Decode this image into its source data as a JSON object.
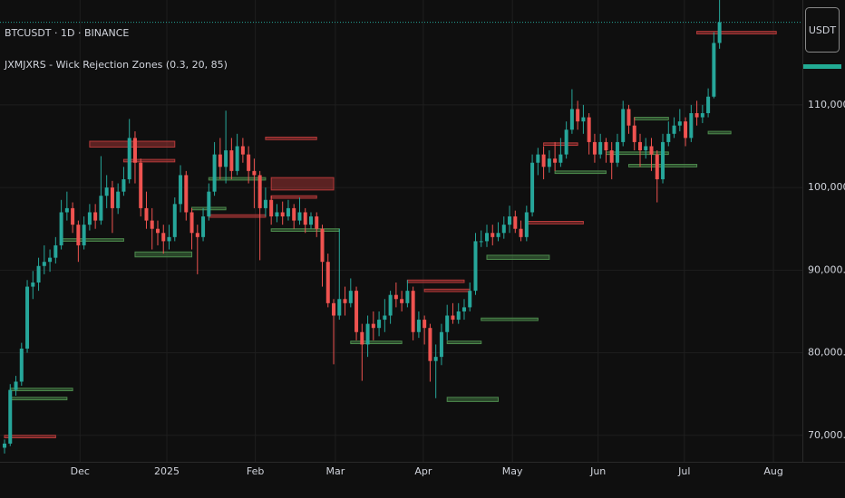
{
  "chart_data": {
    "type": "candlestick",
    "title": "BTCUSDT · 1D · BINANCE",
    "subtitle": "JXMJXRS - Wick Rejection Zones (0.3, 20, 85)",
    "currency_button": "USDT",
    "up_color": "#26a69a",
    "down_color": "#ef5350",
    "grid": true,
    "xlim": [
      -0.8,
      140.6
    ],
    "ylim": [
      66800,
      122700
    ],
    "xticks": [
      {
        "value": 13.3,
        "label": "Dec"
      },
      {
        "value": 28.6,
        "label": "2025"
      },
      {
        "value": 44.2,
        "label": "Feb"
      },
      {
        "value": 58.3,
        "label": "Mar"
      },
      {
        "value": 73.8,
        "label": "Apr"
      },
      {
        "value": 89.5,
        "label": "May"
      },
      {
        "value": 104.6,
        "label": "Jun"
      },
      {
        "value": 119.8,
        "label": "Jul"
      },
      {
        "value": 135.5,
        "label": "Aug"
      }
    ],
    "yticks": [
      {
        "value": 70000,
        "label": "70,000.00"
      },
      {
        "value": 80000,
        "label": "80,000.00"
      },
      {
        "value": 90000,
        "label": "90,000.00"
      },
      {
        "value": 100000,
        "label": "100,000.00"
      },
      {
        "value": 110000,
        "label": "110,000.00"
      }
    ],
    "candles": [
      [
        68500,
        69500,
        67800,
        69000
      ],
      [
        69000,
        76200,
        68700,
        75500
      ],
      [
        75500,
        77200,
        74800,
        76500
      ],
      [
        76500,
        81200,
        76000,
        80500
      ],
      [
        80500,
        88800,
        80000,
        88000
      ],
      [
        88000,
        89900,
        86500,
        88500
      ],
      [
        88500,
        91500,
        87500,
        90500
      ],
      [
        90500,
        93000,
        89500,
        91000
      ],
      [
        91000,
        92500,
        89800,
        91500
      ],
      [
        91500,
        94000,
        90800,
        93000
      ],
      [
        93000,
        98500,
        92500,
        97000
      ],
      [
        97000,
        99500,
        96000,
        97500
      ],
      [
        97500,
        98200,
        94500,
        95500
      ],
      [
        95500,
        96000,
        91000,
        93000
      ],
      [
        93000,
        96500,
        92500,
        95500
      ],
      [
        95500,
        98000,
        94800,
        97000
      ],
      [
        97000,
        98000,
        95000,
        96000
      ],
      [
        96000,
        103800,
        95500,
        99000
      ],
      [
        99000,
        101500,
        97500,
        100000
      ],
      [
        100000,
        100800,
        94500,
        97500
      ],
      [
        97500,
        100500,
        96800,
        99500
      ],
      [
        99500,
        102500,
        99000,
        101000
      ],
      [
        101000,
        108300,
        100500,
        106000
      ],
      [
        106000,
        106800,
        100500,
        103000
      ],
      [
        103000,
        103500,
        96500,
        97500
      ],
      [
        97500,
        99500,
        95000,
        96000
      ],
      [
        96000,
        97500,
        92500,
        95000
      ],
      [
        95000,
        96000,
        93000,
        94500
      ],
      [
        94500,
        95500,
        92000,
        93500
      ],
      [
        93500,
        95500,
        92500,
        94000
      ],
      [
        94000,
        98800,
        93500,
        98000
      ],
      [
        98000,
        102700,
        97000,
        101500
      ],
      [
        101500,
        102000,
        96000,
        97000
      ],
      [
        97000,
        97500,
        92500,
        94500
      ],
      [
        94500,
        95500,
        89500,
        94000
      ],
      [
        94000,
        97500,
        93500,
        96500
      ],
      [
        96500,
        100500,
        96000,
        99500
      ],
      [
        99500,
        105500,
        99000,
        104000
      ],
      [
        104000,
        106000,
        101000,
        102500
      ],
      [
        102500,
        109300,
        100500,
        104500
      ],
      [
        104500,
        106000,
        101000,
        102000
      ],
      [
        102000,
        106500,
        101500,
        105000
      ],
      [
        105000,
        106000,
        103000,
        104000
      ],
      [
        104000,
        105000,
        100500,
        102000
      ],
      [
        102000,
        103500,
        97500,
        101500
      ],
      [
        101500,
        102000,
        91200,
        97500
      ],
      [
        97500,
        100000,
        96500,
        98500
      ],
      [
        98500,
        99000,
        95500,
        96500
      ],
      [
        96500,
        98000,
        95800,
        97000
      ],
      [
        97000,
        98300,
        95500,
        96500
      ],
      [
        96500,
        98500,
        96000,
        97500
      ],
      [
        97500,
        98000,
        95000,
        96000
      ],
      [
        96000,
        98800,
        95500,
        97000
      ],
      [
        97000,
        97500,
        94500,
        95500
      ],
      [
        95500,
        97000,
        95000,
        96500
      ],
      [
        96500,
        97000,
        94000,
        95000
      ],
      [
        95000,
        95500,
        88000,
        91000
      ],
      [
        91000,
        92000,
        85500,
        86000
      ],
      [
        86000,
        86500,
        78600,
        84500
      ],
      [
        84500,
        95000,
        84000,
        86500
      ],
      [
        86500,
        88000,
        84500,
        86000
      ],
      [
        86000,
        89000,
        85500,
        87500
      ],
      [
        87500,
        88000,
        81500,
        82500
      ],
      [
        82500,
        83500,
        76600,
        81000
      ],
      [
        81000,
        84500,
        79500,
        83500
      ],
      [
        83500,
        85000,
        81500,
        83000
      ],
      [
        83000,
        85000,
        82000,
        84000
      ],
      [
        84000,
        86500,
        82500,
        84500
      ],
      [
        84500,
        87500,
        83500,
        87000
      ],
      [
        87000,
        88500,
        85500,
        86500
      ],
      [
        86500,
        87500,
        85000,
        86000
      ],
      [
        86000,
        88800,
        85500,
        87500
      ],
      [
        87500,
        88000,
        81500,
        82500
      ],
      [
        82500,
        85000,
        81800,
        84000
      ],
      [
        84000,
        84500,
        81000,
        83000
      ],
      [
        83000,
        83500,
        76500,
        79000
      ],
      [
        79000,
        81000,
        74500,
        79500
      ],
      [
        79500,
        83500,
        78500,
        82500
      ],
      [
        82500,
        85800,
        81500,
        84500
      ],
      [
        84500,
        86000,
        83500,
        84000
      ],
      [
        84000,
        86000,
        83500,
        85000
      ],
      [
        85000,
        86500,
        84000,
        85500
      ],
      [
        85500,
        88500,
        85000,
        87500
      ],
      [
        87500,
        94500,
        87000,
        93500
      ],
      [
        93500,
        94800,
        92800,
        93500
      ],
      [
        93500,
        95500,
        92800,
        94500
      ],
      [
        94500,
        95500,
        93000,
        94000
      ],
      [
        94000,
        95800,
        93500,
        94500
      ],
      [
        94500,
        96500,
        93800,
        95500
      ],
      [
        95500,
        97800,
        94500,
        96500
      ],
      [
        96500,
        97200,
        94500,
        95000
      ],
      [
        95000,
        96000,
        93500,
        94000
      ],
      [
        94000,
        97800,
        93500,
        97000
      ],
      [
        97000,
        104000,
        96500,
        103000
      ],
      [
        103000,
        104800,
        101500,
        104000
      ],
      [
        104000,
        105000,
        101000,
        102500
      ],
      [
        102500,
        104500,
        101800,
        103500
      ],
      [
        103500,
        105500,
        102000,
        103000
      ],
      [
        103000,
        106000,
        102500,
        104000
      ],
      [
        104000,
        108000,
        103500,
        107000
      ],
      [
        107000,
        111900,
        106500,
        109500
      ],
      [
        109500,
        110500,
        107000,
        108000
      ],
      [
        108000,
        110000,
        106500,
        108500
      ],
      [
        108500,
        109000,
        104000,
        105500
      ],
      [
        105500,
        106500,
        103000,
        104000
      ],
      [
        104000,
        106500,
        103500,
        105500
      ],
      [
        105500,
        106000,
        103000,
        104500
      ],
      [
        104500,
        105500,
        101000,
        103000
      ],
      [
        103000,
        106500,
        102500,
        105500
      ],
      [
        105500,
        110500,
        105000,
        109500
      ],
      [
        109500,
        110000,
        106500,
        107500
      ],
      [
        107500,
        108500,
        104500,
        105500
      ],
      [
        105500,
        106500,
        102500,
        104500
      ],
      [
        104500,
        106000,
        103500,
        105000
      ],
      [
        105000,
        106000,
        102000,
        104000
      ],
      [
        104000,
        104500,
        98200,
        101000
      ],
      [
        101000,
        106500,
        100500,
        105500
      ],
      [
        105500,
        108000,
        105000,
        106500
      ],
      [
        106500,
        108500,
        106000,
        107500
      ],
      [
        107500,
        109500,
        106800,
        108000
      ],
      [
        108000,
        108500,
        105000,
        106000
      ],
      [
        106000,
        110000,
        105500,
        109000
      ],
      [
        109000,
        110500,
        107500,
        108500
      ],
      [
        108500,
        110000,
        107800,
        109000
      ],
      [
        109000,
        112000,
        108500,
        111000
      ],
      [
        111000,
        118800,
        110800,
        117500
      ],
      [
        117500,
        123000,
        116800,
        120000
      ]
    ],
    "zones": [
      {
        "start": 15,
        "end": 30,
        "top": 105600,
        "bottom": 104900,
        "color": "#b83a3a"
      },
      {
        "start": 21,
        "end": 30,
        "top": 103400,
        "bottom": 103100,
        "color": "#b83a3a"
      },
      {
        "start": 46,
        "end": 55,
        "top": 106100,
        "bottom": 105800,
        "color": "#b83a3a"
      },
      {
        "start": 47,
        "end": 58,
        "top": 101200,
        "bottom": 99700,
        "color": "#b83a3a"
      },
      {
        "start": 36,
        "end": 46,
        "top": 96700,
        "bottom": 96400,
        "color": "#b83a3a"
      },
      {
        "start": 47,
        "end": 55,
        "top": 99000,
        "bottom": 98700,
        "color": "#b83a3a"
      },
      {
        "start": 71,
        "end": 81,
        "top": 88800,
        "bottom": 88500,
        "color": "#b83a3a"
      },
      {
        "start": 74,
        "end": 82,
        "top": 87700,
        "bottom": 87400,
        "color": "#b83a3a"
      },
      {
        "start": 95,
        "end": 101,
        "top": 105400,
        "bottom": 105100,
        "color": "#b83a3a"
      },
      {
        "start": 122,
        "end": 136,
        "top": 118900,
        "bottom": 118600,
        "color": "#b83a3a"
      },
      {
        "start": 0,
        "end": 9,
        "top": 70000,
        "bottom": 69700,
        "color": "#b83a3a"
      },
      {
        "start": 92,
        "end": 102,
        "top": 95900,
        "bottom": 95600,
        "color": "#b83a3a"
      },
      {
        "start": 1,
        "end": 12,
        "top": 75700,
        "bottom": 75400,
        "color": "#4c8a4c"
      },
      {
        "start": 1,
        "end": 11,
        "top": 74600,
        "bottom": 74300,
        "color": "#4c8a4c"
      },
      {
        "start": 10,
        "end": 21,
        "top": 93800,
        "bottom": 93500,
        "color": "#4c8a4c"
      },
      {
        "start": 23,
        "end": 33,
        "top": 92200,
        "bottom": 91600,
        "color": "#4c8a4c"
      },
      {
        "start": 33,
        "end": 39,
        "top": 97600,
        "bottom": 97300,
        "color": "#4c8a4c"
      },
      {
        "start": 36,
        "end": 46,
        "top": 101200,
        "bottom": 100900,
        "color": "#4c8a4c"
      },
      {
        "start": 47,
        "end": 59,
        "top": 95000,
        "bottom": 94700,
        "color": "#4c8a4c"
      },
      {
        "start": 61,
        "end": 70,
        "top": 81400,
        "bottom": 81100,
        "color": "#4c8a4c"
      },
      {
        "start": 78,
        "end": 87,
        "top": 74600,
        "bottom": 74100,
        "color": "#4c8a4c"
      },
      {
        "start": 78,
        "end": 84,
        "top": 81400,
        "bottom": 81100,
        "color": "#4c8a4c"
      },
      {
        "start": 85,
        "end": 96,
        "top": 91800,
        "bottom": 91300,
        "color": "#4c8a4c"
      },
      {
        "start": 84,
        "end": 94,
        "top": 84200,
        "bottom": 83900,
        "color": "#4c8a4c"
      },
      {
        "start": 97,
        "end": 106,
        "top": 102000,
        "bottom": 101700,
        "color": "#4c8a4c"
      },
      {
        "start": 106,
        "end": 117,
        "top": 104300,
        "bottom": 104000,
        "color": "#4c8a4c"
      },
      {
        "start": 110,
        "end": 122,
        "top": 102800,
        "bottom": 102500,
        "color": "#4c8a4c"
      },
      {
        "start": 111,
        "end": 117,
        "top": 108500,
        "bottom": 108200,
        "color": "#4c8a4c"
      },
      {
        "start": 124,
        "end": 128,
        "top": 106800,
        "bottom": 106500,
        "color": "#4c8a4c"
      }
    ]
  }
}
